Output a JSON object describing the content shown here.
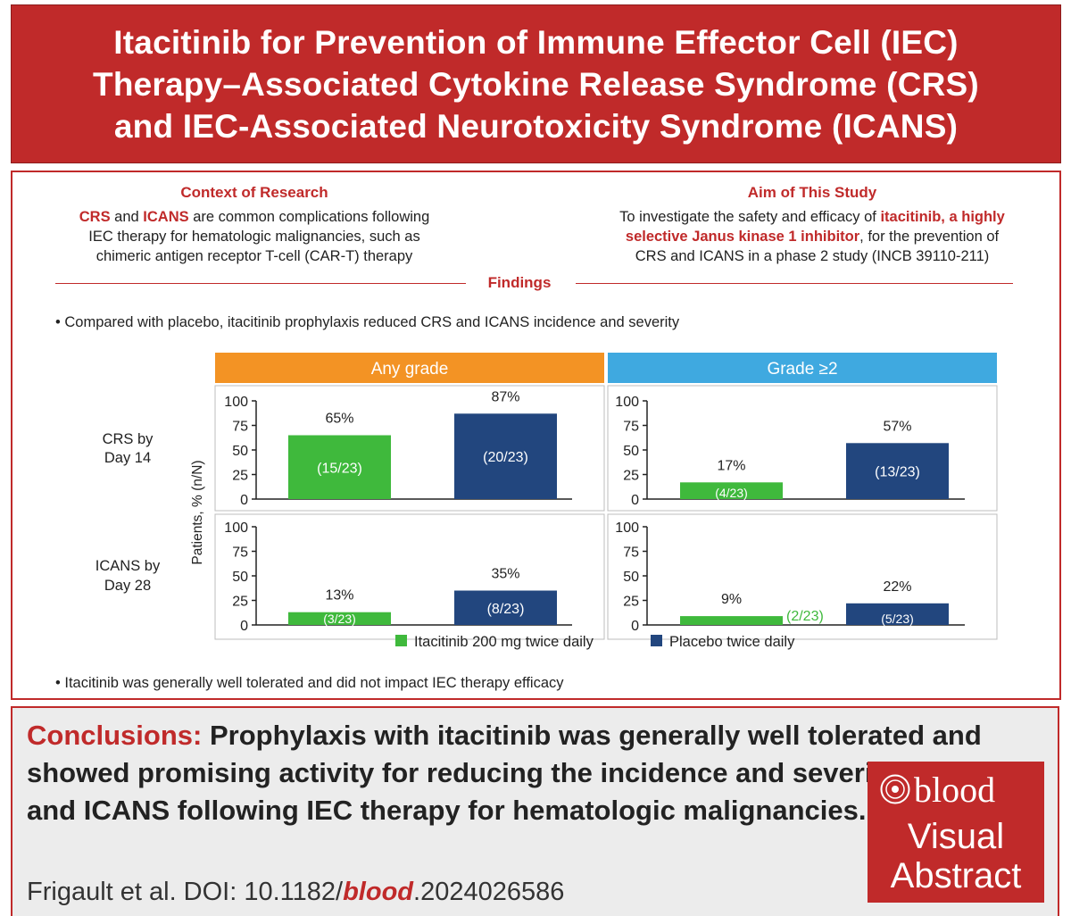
{
  "title": {
    "line1": "Itacitinib for Prevention of Immune Effector Cell (IEC)",
    "line2": "Therapy–Associated Cytokine Release Syndrome (CRS)",
    "line3": "and IEC-Associated Neurotoxicity Syndrome (ICANS)"
  },
  "context": {
    "heading": "Context of Research",
    "abbr1": "CRS",
    "and": "and",
    "abbr2": "ICANS",
    "rest1": "are common complications following",
    "line2": "IEC therapy for hematologic malignancies, such as",
    "line3": "chimeric antigen receptor T-cell (CAR-T) therapy"
  },
  "aim": {
    "heading": "Aim of This Study",
    "pre": "To investigate the safety and efficacy of",
    "drug": "itacitinib, a highly",
    "drug2": "selective Janus kinase 1 inhibitor",
    "post": ", for the prevention of",
    "line3": "CRS and ICANS in a phase 2 study (INCB 39110-211)"
  },
  "findings": {
    "heading": "Findings",
    "bullet1": "• Compared with placebo, itacitinib prophylaxis reduced CRS and ICANS incidence and severity",
    "bullet2": "• Itacitinib was generally well tolerated and did not impact IEC therapy efficacy"
  },
  "chart_data": {
    "type": "bar",
    "ylabel": "Patients, % (n/N)",
    "ylim": [
      0,
      100
    ],
    "yticks": [
      "0",
      "25",
      "50",
      "75",
      "100"
    ],
    "columns": [
      {
        "label": "Any grade",
        "color": "#f39324"
      },
      {
        "label": "Grade ≥2",
        "color": "#3fa9e0"
      }
    ],
    "rows": [
      {
        "label_line1": "CRS by",
        "label_line2": "Day 14"
      },
      {
        "label_line1": "ICANS by",
        "label_line2": "Day 28"
      }
    ],
    "series": [
      {
        "name": "Itacitinib 200 mg twice daily",
        "color": "#3fb93c"
      },
      {
        "name": "Placebo twice daily",
        "color": "#22467e"
      }
    ],
    "panels": [
      {
        "row": 0,
        "col": 0,
        "bars": [
          {
            "value": 65,
            "pct": "65%",
            "nN": "(15/23)"
          },
          {
            "value": 87,
            "pct": "87%",
            "nN": "(20/23)"
          }
        ]
      },
      {
        "row": 0,
        "col": 1,
        "bars": [
          {
            "value": 17,
            "pct": "17%",
            "nN": "(4/23)"
          },
          {
            "value": 57,
            "pct": "57%",
            "nN": "(13/23)"
          }
        ]
      },
      {
        "row": 1,
        "col": 0,
        "bars": [
          {
            "value": 13,
            "pct": "13%",
            "nN": "(3/23)"
          },
          {
            "value": 35,
            "pct": "35%",
            "nN": "(8/23)"
          }
        ]
      },
      {
        "row": 1,
        "col": 1,
        "bars": [
          {
            "value": 9,
            "pct": "9%",
            "nN": "(2/23)",
            "nN_outside": true
          },
          {
            "value": 22,
            "pct": "22%",
            "nN": "(5/23)"
          }
        ]
      }
    ]
  },
  "conclusions": {
    "label": "Conclusions:",
    "text": "Prophylaxis with itacitinib was generally well tolerated and showed promising activity for reducing the incidence and severity of CRS and ICANS following IEC therapy for hematologic malignancies."
  },
  "citation": {
    "prefix": "Frigault et al. DOI: 10.1182/",
    "journal": "blood",
    "suffix": ".2024026586"
  },
  "logo": {
    "journal": "blood",
    "line2": "Visual",
    "line3": "Abstract"
  }
}
